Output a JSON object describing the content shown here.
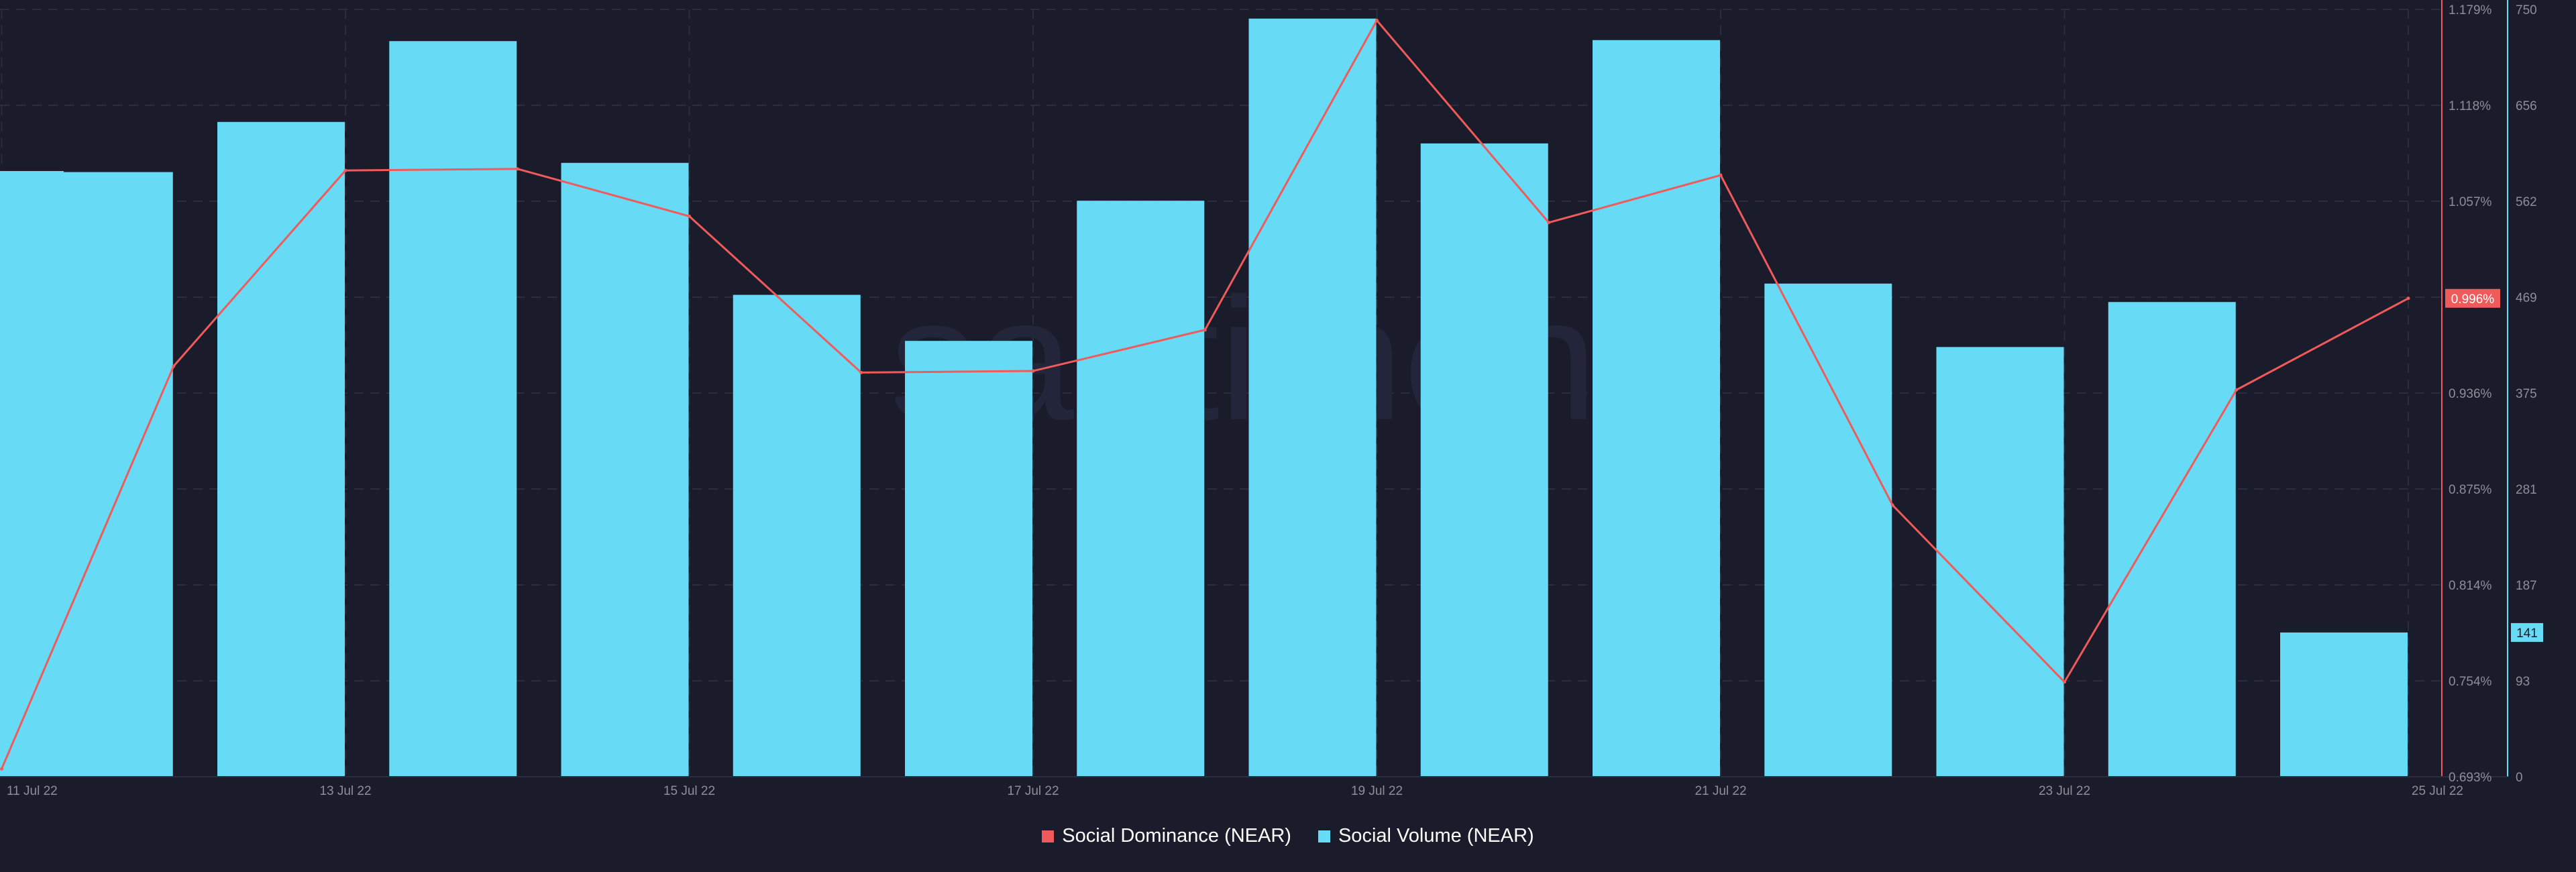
{
  "chart_data": {
    "type": "bar+line",
    "watermark": "santiment",
    "categories": [
      "11 Jul 22",
      "12 Jul 22",
      "13 Jul 22",
      "14 Jul 22",
      "15 Jul 22",
      "16 Jul 22",
      "17 Jul 22",
      "18 Jul 22",
      "19 Jul 22",
      "20 Jul 22",
      "21 Jul 22",
      "22 Jul 22",
      "23 Jul 22",
      "24 Jul 22",
      "25 Jul 22"
    ],
    "x_tick_labels": [
      "11 Jul 22",
      "13 Jul 22",
      "15 Jul 22",
      "17 Jul 22",
      "19 Jul 22",
      "21 Jul 22",
      "23 Jul 22",
      "25 Jul 22"
    ],
    "series": [
      {
        "name": "Social Volume (NEAR)",
        "type": "bar",
        "axis": "right-outer",
        "color": "#67dbf5",
        "values": [
          592,
          591,
          640,
          719,
          600,
          471,
          426,
          563,
          741,
          619,
          720,
          482,
          420,
          464,
          141
        ]
      },
      {
        "name": "Social Dominance (NEAR)",
        "type": "line",
        "axis": "right-inner",
        "color": "#f05a5a",
        "values": [
          0.698,
          0.953,
          1.077,
          1.078,
          1.048,
          0.949,
          0.95,
          0.976,
          1.172,
          1.044,
          1.074,
          0.865,
          0.753,
          0.938,
          0.996
        ]
      }
    ],
    "y_dominance": {
      "min": 0.693,
      "max": 1.179,
      "ticks": [
        "1.179%",
        "1.118%",
        "1.057%",
        "0.996%",
        "0.936%",
        "0.875%",
        "0.814%",
        "0.754%",
        "0.693%"
      ],
      "current_label": "0.996%"
    },
    "y_volume": {
      "min": 0,
      "max": 750,
      "ticks": [
        "750",
        "656",
        "562",
        "469",
        "375",
        "281",
        "187",
        "93",
        "0"
      ],
      "current_label": "141"
    }
  },
  "legend": [
    {
      "label": "Social Dominance (NEAR)",
      "color": "#f05a5a"
    },
    {
      "label": "Social Volume (NEAR)",
      "color": "#67dbf5"
    }
  ]
}
